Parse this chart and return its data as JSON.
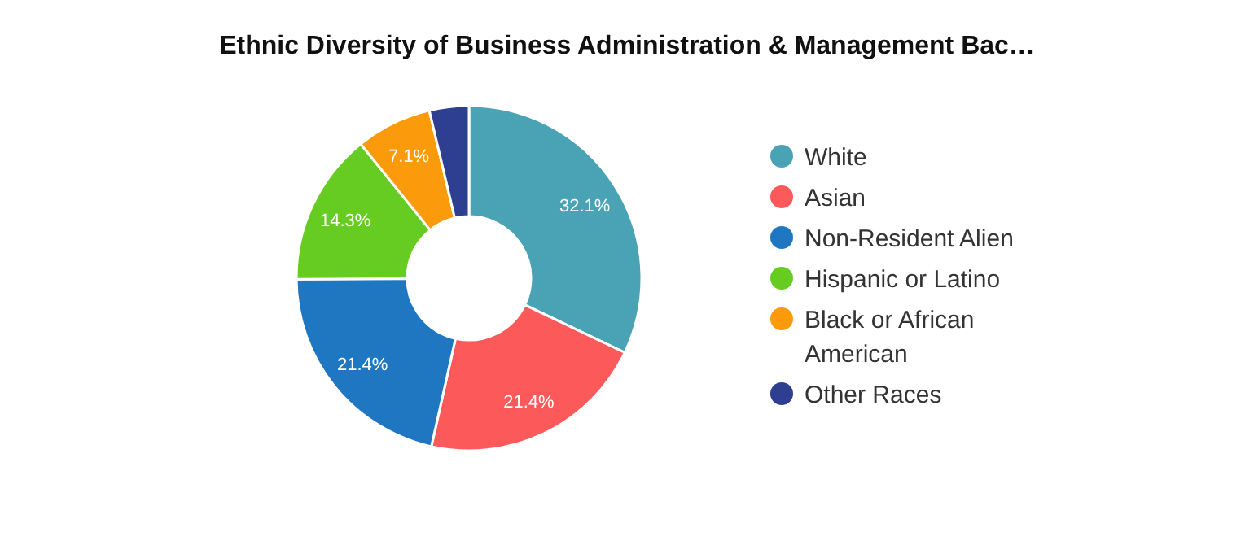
{
  "chart_data": {
    "type": "donut",
    "title": "Ethnic Diversity of Business Administration & Management Bac…",
    "categories": [
      "White",
      "Asian",
      "Non-Resident Alien",
      "Hispanic or Latino",
      "Black or African American",
      "Other Races"
    ],
    "values": [
      32.1,
      21.4,
      21.4,
      14.3,
      7.1,
      3.7
    ],
    "colors": [
      "#4aa3b5",
      "#fc5a5a",
      "#1f77c2",
      "#66cc22",
      "#fb9a0b",
      "#2e3e91"
    ],
    "value_labels": [
      "32.1%",
      "21.4%",
      "21.4%",
      "14.3%",
      "7.1%",
      null
    ],
    "legend": "right"
  }
}
